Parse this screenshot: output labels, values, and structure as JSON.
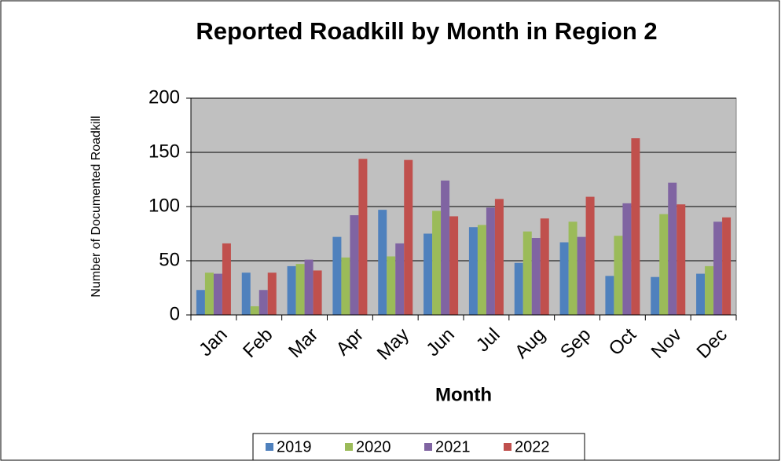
{
  "chart_data": {
    "type": "bar",
    "title": "Reported Roadkill by Month in Region  2",
    "x_label": "Month",
    "y_label": "Number of Documented Roadkill",
    "categories": [
      "Jan",
      "Feb",
      "Mar",
      "Apr",
      "May",
      "Jun",
      "Jul",
      "Aug",
      "Sep",
      "Oct",
      "Nov",
      "Dec"
    ],
    "series": [
      {
        "name": "2019",
        "color": "#4f81bd",
        "values": [
          23,
          39,
          45,
          72,
          97,
          75,
          81,
          48,
          67,
          36,
          35,
          38
        ]
      },
      {
        "name": "2020",
        "color": "#9bbb59",
        "values": [
          39,
          8,
          47,
          53,
          54,
          96,
          83,
          77,
          86,
          73,
          93,
          45
        ]
      },
      {
        "name": "2021",
        "color": "#8064a2",
        "values": [
          38,
          23,
          51,
          92,
          66,
          124,
          99,
          71,
          72,
          103,
          122,
          86
        ]
      },
      {
        "name": "2022",
        "color": "#c0504d",
        "values": [
          66,
          39,
          41,
          144,
          143,
          91,
          107,
          89,
          109,
          163,
          102,
          90
        ]
      }
    ],
    "ylim": [
      0,
      200
    ],
    "yticks": [
      0,
      50,
      100,
      150,
      200
    ],
    "grid": true,
    "legend": "bottom"
  }
}
